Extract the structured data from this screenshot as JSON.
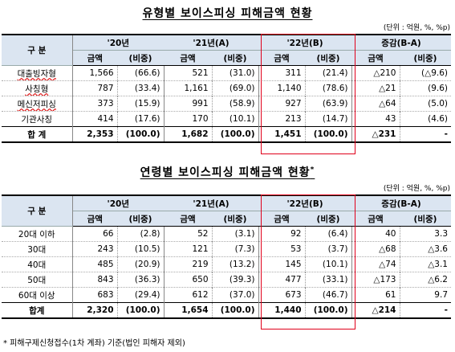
{
  "table1": {
    "title": "유형별 보이스피싱 피해금액 현황",
    "unit": "(단위 : 억원, %, %p)",
    "col_gubun": "구 분",
    "years": [
      "'20년",
      "'21년(A)",
      "'22년(B)",
      "증감(B-A)"
    ],
    "sub_amount": "금액",
    "sub_ratio": "(비중)",
    "rows": [
      {
        "label": "대출빙자형",
        "a20": "1,566",
        "r20": "(66.6)",
        "a21": "521",
        "r21": "(31.0)",
        "a22": "311",
        "r22": "(21.4)",
        "ad": "△210",
        "rd": "(△9.6)"
      },
      {
        "label": "사칭형",
        "a20": "787",
        "r20": "(33.4)",
        "a21": "1,161",
        "r21": "(69.0)",
        "a22": "1,140",
        "r22": "(78.6)",
        "ad": "△21",
        "rd": "(9.6)"
      },
      {
        "label": "메신저피싱",
        "a20": "373",
        "r20": "(15.9)",
        "a21": "991",
        "r21": "(58.9)",
        "a22": "927",
        "r22": "(63.9)",
        "ad": "△64",
        "rd": "(5.0)"
      },
      {
        "label": "기관사칭",
        "a20": "414",
        "r20": "(17.6)",
        "a21": "170",
        "r21": "(10.1)",
        "a22": "213",
        "r22": "(14.7)",
        "ad": "43",
        "rd": "(4.6)"
      }
    ],
    "total": {
      "label": "합 계",
      "a20": "2,353",
      "r20": "(100.0)",
      "a21": "1,682",
      "r21": "(100.0)",
      "a22": "1,451",
      "r22": "(100.0)",
      "ad": "△231",
      "rd": "-"
    }
  },
  "table2": {
    "title": "연령별 보이스피싱 피해금액 현황",
    "title_mark": "*",
    "unit": "(단위 : 억원, %, %p)",
    "col_gubun": "구 분",
    "years": [
      "'20년",
      "'21년(A)",
      "'22년(B)",
      "증감(B-A)"
    ],
    "sub_amount": "금액",
    "sub_ratio": "(비중)",
    "rows": [
      {
        "label": "20대 이하",
        "a20": "66",
        "r20": "(2.8)",
        "a21": "52",
        "r21": "(3.1)",
        "a22": "92",
        "r22": "(6.4)",
        "ad": "40",
        "rd": "3.3"
      },
      {
        "label": "30대",
        "a20": "243",
        "r20": "(10.5)",
        "a21": "121",
        "r21": "(7.3)",
        "a22": "53",
        "r22": "(3.7)",
        "ad": "△68",
        "rd": "△3.6"
      },
      {
        "label": "40대",
        "a20": "485",
        "r20": "(20.9)",
        "a21": "219",
        "r21": "(13.2)",
        "a22": "145",
        "r22": "(10.1)",
        "ad": "△74",
        "rd": "△3.1"
      },
      {
        "label": "50대",
        "a20": "843",
        "r20": "(36.3)",
        "a21": "650",
        "r21": "(39.3)",
        "a22": "477",
        "r22": "(33.1)",
        "ad": "△173",
        "rd": "△6.2"
      },
      {
        "label": "60대 이상",
        "a20": "683",
        "r20": "(29.4)",
        "a21": "612",
        "r21": "(37.0)",
        "a22": "673",
        "r22": "(46.7)",
        "ad": "61",
        "rd": "9.7"
      }
    ],
    "total": {
      "label": "합계",
      "a20": "2,320",
      "r20": "(100.0)",
      "a21": "1,654",
      "r21": "(100.0)",
      "a22": "1,440",
      "r22": "(100.0)",
      "ad": "△214",
      "rd": "-"
    }
  },
  "footnote": "* 피해구제신청접수(1차 계좌) 기준(법인 피해자 제외)",
  "highlight_color": "#e0001b",
  "header_bg": "#dbe5f1"
}
